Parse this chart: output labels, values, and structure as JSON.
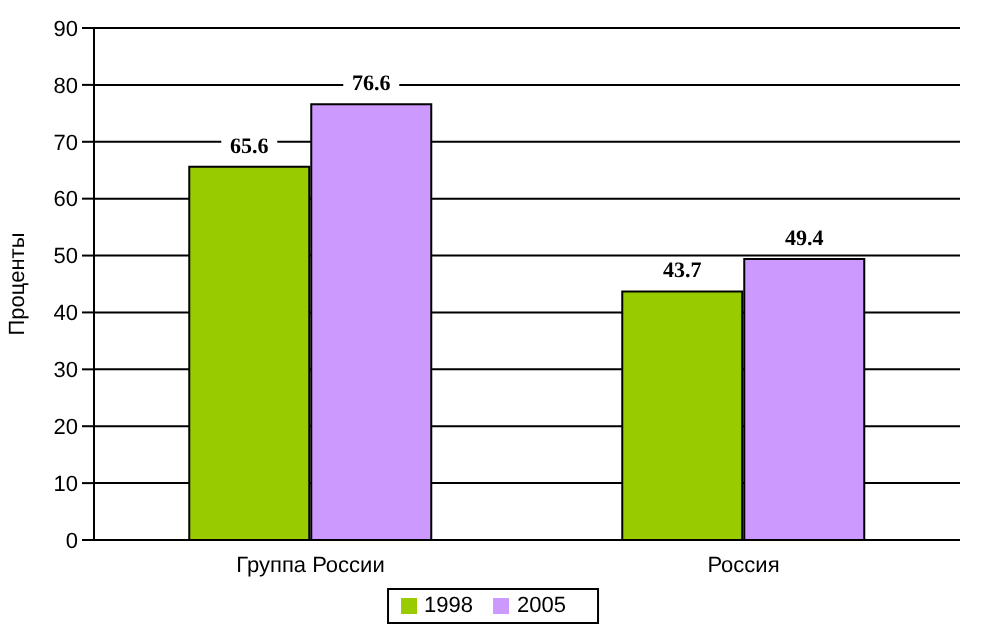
{
  "chart_data": {
    "type": "bar",
    "ylabel": "Проценты",
    "categories": [
      "Группа России",
      "Россия"
    ],
    "series": [
      {
        "name": "1998",
        "color": "#99cc00",
        "values": [
          65.6,
          43.7
        ]
      },
      {
        "name": "2005",
        "color": "#cc99ff",
        "values": [
          76.6,
          49.4
        ]
      }
    ],
    "ylim": [
      0,
      90
    ],
    "yticks": [
      0,
      10,
      20,
      30,
      40,
      50,
      60,
      70,
      80,
      90
    ],
    "grid": "y",
    "legend": "bottom",
    "data_labels": true
  }
}
